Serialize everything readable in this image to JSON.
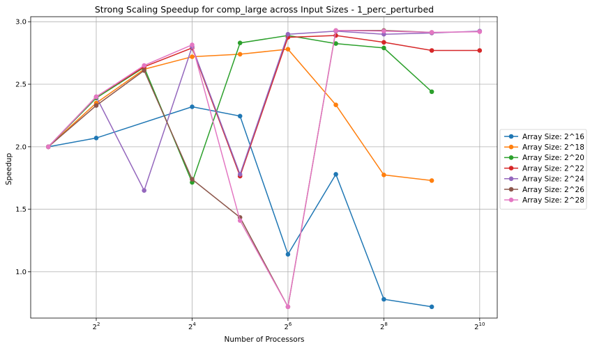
{
  "chart_data": {
    "type": "line",
    "title": "Strong Scaling Speedup for comp_large across Input Sizes - 1_perc_perturbed",
    "xlabel": "Number of Processors",
    "ylabel": "Speedup",
    "x_scale": "log2",
    "x": [
      2,
      4,
      8,
      16,
      32,
      64,
      128,
      256,
      512,
      1024
    ],
    "x_ticks": [
      {
        "base": "2",
        "exp": "2",
        "value": 4
      },
      {
        "base": "2",
        "exp": "4",
        "value": 16
      },
      {
        "base": "2",
        "exp": "6",
        "value": 64
      },
      {
        "base": "2",
        "exp": "8",
        "value": 256
      },
      {
        "base": "2",
        "exp": "10",
        "value": 1024
      }
    ],
    "y_ticks": [
      "1.0",
      "1.5",
      "2.0",
      "2.5",
      "3.0"
    ],
    "xlim": [
      1.55,
      1320
    ],
    "ylim": [
      0.63,
      3.04
    ],
    "grid": true,
    "legend_position": "right",
    "series": [
      {
        "name": "Array Size: 2^16",
        "color": "#1f77b4",
        "values": [
          2.0,
          2.07,
          null,
          2.32,
          2.245,
          1.14,
          1.78,
          0.78,
          0.72,
          null
        ]
      },
      {
        "name": "Array Size: 2^18",
        "color": "#ff7f0e",
        "values": [
          2.0,
          2.35,
          2.62,
          2.72,
          2.74,
          2.78,
          2.335,
          1.775,
          1.73,
          null
        ]
      },
      {
        "name": "Array Size: 2^20",
        "color": "#2ca02c",
        "values": [
          2.0,
          2.39,
          2.635,
          1.715,
          2.83,
          2.89,
          2.825,
          2.79,
          2.44,
          null
        ]
      },
      {
        "name": "Array Size: 2^22",
        "color": "#d62728",
        "values": [
          2.0,
          2.4,
          2.64,
          2.79,
          1.765,
          2.875,
          2.89,
          2.835,
          2.77,
          2.77
        ]
      },
      {
        "name": "Array Size: 2^24",
        "color": "#9467bd",
        "values": [
          2.0,
          2.4,
          1.65,
          2.8,
          1.78,
          2.9,
          2.925,
          2.9,
          2.91,
          2.925
        ]
      },
      {
        "name": "Array Size: 2^26",
        "color": "#8c564b",
        "values": [
          2.0,
          2.33,
          2.61,
          1.74,
          1.435,
          0.72,
          2.93,
          2.93,
          2.915,
          null
        ]
      },
      {
        "name": "Array Size: 2^28",
        "color": "#e377c2",
        "values": [
          2.0,
          2.4,
          2.65,
          2.815,
          1.41,
          0.72,
          2.93,
          2.925,
          2.915,
          2.92
        ]
      }
    ]
  }
}
